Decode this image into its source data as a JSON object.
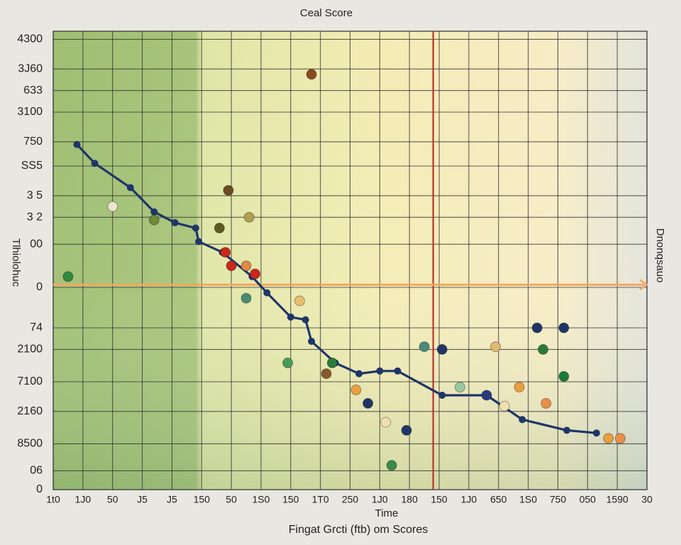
{
  "chart_data": {
    "type": "scatter",
    "title": "Ceal Score",
    "x_label": "Time",
    "subtitle": "Fingat Grcti (ftb) om Scores",
    "y_label": "Tlhiolohuc",
    "y2_label": "Dnonqsauo",
    "xlim": [
      0,
      20
    ],
    "ylim": [
      0,
      17
    ],
    "grid": true,
    "xticks": [
      {
        "value": 0,
        "label": "1t0"
      },
      {
        "value": 1,
        "label": "1J0"
      },
      {
        "value": 2,
        "label": "50"
      },
      {
        "value": 3,
        "label": "J5"
      },
      {
        "value": 4,
        "label": "J5"
      },
      {
        "value": 5,
        "label": "150"
      },
      {
        "value": 6,
        "label": "50"
      },
      {
        "value": 7,
        "label": "1S0"
      },
      {
        "value": 8,
        "label": "150"
      },
      {
        "value": 9,
        "label": "1T0"
      },
      {
        "value": 10,
        "label": "250"
      },
      {
        "value": 11,
        "label": "1J0"
      },
      {
        "value": 12,
        "label": "180"
      },
      {
        "value": 13,
        "label": "150"
      },
      {
        "value": 14,
        "label": "1J0"
      },
      {
        "value": 15,
        "label": "650"
      },
      {
        "value": 16,
        "label": "1S0"
      },
      {
        "value": 17,
        "label": "750"
      },
      {
        "value": 18,
        "label": "050"
      },
      {
        "value": 19,
        "label": "1590"
      },
      {
        "value": 20,
        "label": "30"
      }
    ],
    "yticks": [
      0,
      {
        "value": 0.7,
        "label": "06"
      },
      {
        "value": 1.7,
        "label": "8500"
      },
      {
        "value": 2.9,
        "label": "2160"
      },
      {
        "value": 4.0,
        "label": "7100"
      },
      {
        "value": 5.2,
        "label": "2100"
      },
      {
        "value": 6.0,
        "label": "74"
      },
      {
        "value": 7.5,
        "label": "0"
      },
      {
        "value": 9.1,
        "label": "00"
      },
      {
        "value": 10.1,
        "label": "3 2"
      },
      {
        "value": 10.9,
        "label": "3 5"
      },
      {
        "value": 12.0,
        "label": "SS5"
      },
      {
        "value": 12.9,
        "label": "750"
      },
      {
        "value": 14.0,
        "label": "3100"
      },
      {
        "value": 14.8,
        "label": "633"
      },
      {
        "value": 15.6,
        "label": "3J60"
      },
      {
        "value": 16.7,
        "label": "4300"
      }
    ],
    "vline_x": 12.8,
    "vline_color": "#b8322a",
    "hline_y": 7.6,
    "hline_color": "#f0a860",
    "series": [
      {
        "color": "#1f3568",
        "x": [
          0.8,
          1.4,
          2.6,
          3.4,
          4.1,
          4.8,
          4.9,
          5.7,
          6.7,
          7.2,
          8.0,
          8.5,
          8.7,
          9.5,
          10.3,
          11.0,
          11.6,
          13.1,
          14.6,
          15.8,
          17.3,
          18.3
        ],
        "values": [
          12.8,
          12.1,
          11.2,
          10.3,
          9.9,
          9.7,
          9.2,
          8.8,
          7.9,
          7.3,
          6.4,
          6.3,
          5.5,
          4.7,
          4.3,
          4.4,
          4.4,
          3.5,
          3.5,
          2.6,
          2.2,
          2.1
        ]
      },
      {
        "x": [
          0.5,
          8.7,
          5.9,
          5.6,
          2.0,
          3.4,
          6.0,
          6.5,
          6.8,
          5.8,
          6.5,
          8.3,
          7.9,
          9.4,
          9.2,
          10.2,
          10.6,
          11.2,
          11.9,
          11.4,
          12.5,
          13.1,
          14.9,
          16.3,
          17.2,
          16.5,
          17.2,
          15.7,
          16.6,
          13.7,
          14.6,
          15.2,
          18.7,
          19.1,
          6.6
        ],
        "values": [
          7.9,
          15.4,
          11.1,
          9.7,
          10.5,
          10.0,
          8.3,
          8.3,
          8.0,
          8.8,
          7.1,
          7.0,
          4.7,
          4.7,
          4.3,
          3.7,
          3.2,
          2.5,
          2.2,
          0.9,
          5.3,
          5.2,
          5.3,
          6.0,
          6.0,
          5.2,
          4.2,
          3.8,
          3.2,
          3.8,
          3.5,
          3.1,
          1.9,
          1.9,
          10.1
        ],
        "colors": [
          "#2f8a3e",
          "#8a4a1e",
          "#6b4a22",
          "#5a5a22",
          "#e8e6cf",
          "#6e8a3a",
          "#c8281e",
          "#e0884a",
          "#c8281e",
          "#c8281e",
          "#4a8a6e",
          "#e8c070",
          "#4a9a5a",
          "#2a7a3a",
          "#8a5a2a",
          "#e8a040",
          "#1f3568",
          "#f0e0b0",
          "#1f3568",
          "#3a8a4a",
          "#4a8a7a",
          "#1f3568",
          "#e0b870",
          "#1f3568",
          "#1f3568",
          "#2a7a3a",
          "#1a7a3a",
          "#e8a040",
          "#e8904a",
          "#9ac8a0",
          "#2a3a80",
          "#f0e0b0",
          "#e8a040",
          "#e8904a",
          "#b0a050"
        ]
      }
    ]
  }
}
